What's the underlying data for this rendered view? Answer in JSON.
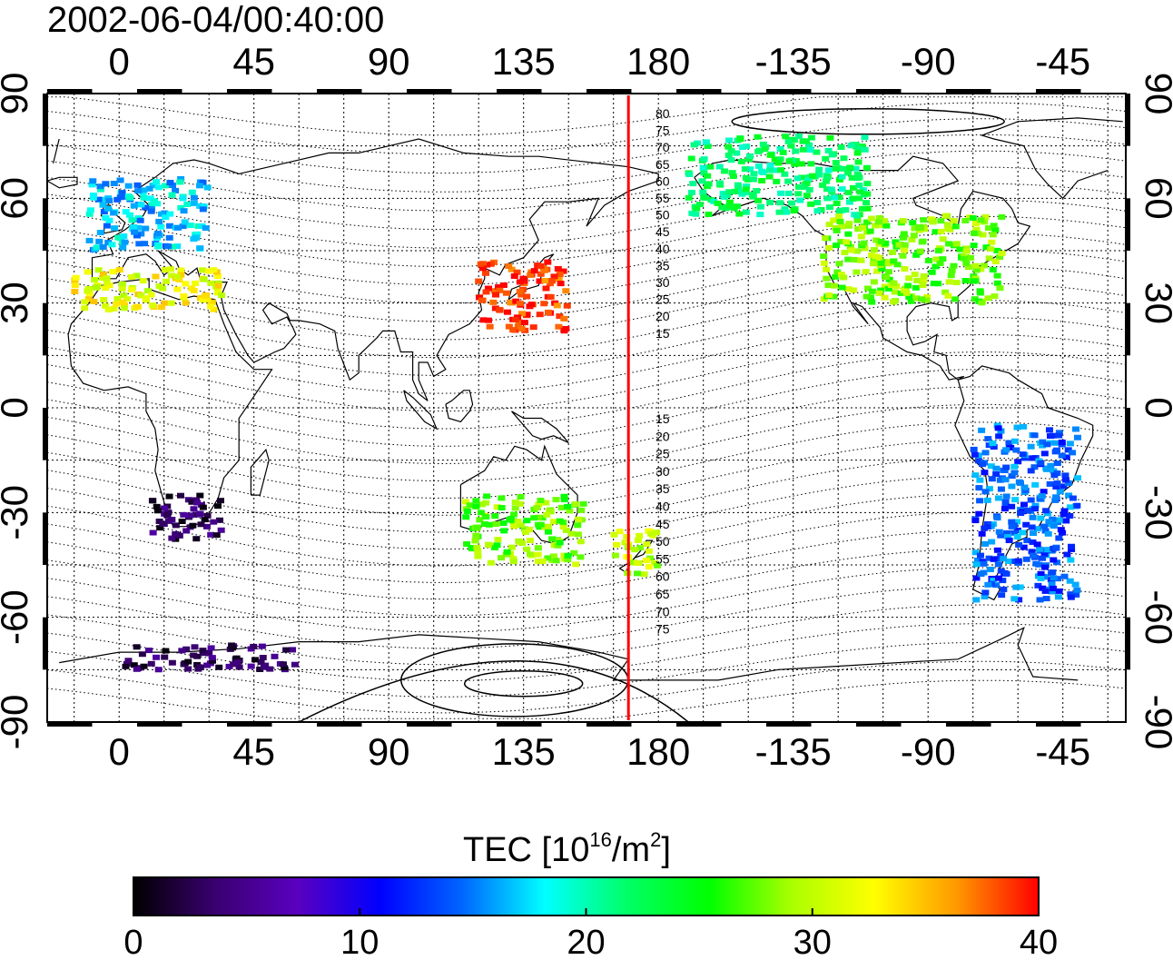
{
  "title": "2002-06-04/00:40:00",
  "map": {
    "top_lon_ticks": [
      "0",
      "45",
      "90",
      "135",
      "180",
      "-135",
      "-90",
      "-45"
    ],
    "bottom_lon_ticks": [
      "0",
      "45",
      "90",
      "135",
      "180",
      "-135",
      "-90",
      "-45"
    ],
    "lat_ticks": [
      "90",
      "60",
      "30",
      "0",
      "-30",
      "-60",
      "-90"
    ],
    "terminator_lon": 170,
    "terminator_color": "#ff0000",
    "contour_labels_north": [
      "80",
      "75",
      "70",
      "65",
      "60",
      "55",
      "50",
      "45",
      "40",
      "35",
      "30",
      "25",
      "20",
      "15"
    ],
    "contour_labels_south": [
      "15",
      "20",
      "25",
      "30",
      "35",
      "40",
      "45",
      "50",
      "55",
      "60",
      "65",
      "70",
      "75"
    ]
  },
  "colorbar": {
    "label_main": "TEC  [10",
    "label_sup1": "16",
    "label_mid": "/m",
    "label_sup2": "2",
    "label_end": "]",
    "min": 0,
    "max": 40,
    "ticks": [
      "0",
      "10",
      "20",
      "30",
      "40"
    ],
    "colormap": [
      "#000000",
      "#3a0070",
      "#5a00c0",
      "#0000ff",
      "#0066ff",
      "#00ffff",
      "#00ff66",
      "#00ff00",
      "#aaff00",
      "#ffff00",
      "#ff9900",
      "#ff0000"
    ]
  },
  "tec_clusters": [
    {
      "region": "Europe",
      "lon": [
        -10,
        30
      ],
      "lat": [
        45,
        66
      ],
      "tec": 17
    },
    {
      "region": "Mediterranean",
      "lon": [
        -15,
        35
      ],
      "lat": [
        28,
        40
      ],
      "tec": 32
    },
    {
      "region": "East Asia",
      "lon": [
        120,
        150
      ],
      "lat": [
        22,
        42
      ],
      "tec": 39
    },
    {
      "region": "North America",
      "lon": [
        -125,
        -65
      ],
      "lat": [
        30,
        55
      ],
      "tec": 28
    },
    {
      "region": "Alaska-Canada",
      "lon": [
        -170,
        -110
      ],
      "lat": [
        55,
        78
      ],
      "tec": 22
    },
    {
      "region": "Southern Africa",
      "lon": [
        10,
        35
      ],
      "lat": [
        -38,
        -25
      ],
      "tec": 3
    },
    {
      "region": "Australia",
      "lon": [
        115,
        155
      ],
      "lat": [
        -45,
        -25
      ],
      "tec": 28
    },
    {
      "region": "New Zealand",
      "lon": [
        165,
        180
      ],
      "lat": [
        -48,
        -35
      ],
      "tec": 30
    },
    {
      "region": "South America",
      "lon": [
        -75,
        -40
      ],
      "lat": [
        -55,
        -5
      ],
      "tec": 14
    },
    {
      "region": "Antarctica",
      "lon": [
        0,
        60
      ],
      "lat": [
        -75,
        -68
      ],
      "tec": 3
    }
  ]
}
